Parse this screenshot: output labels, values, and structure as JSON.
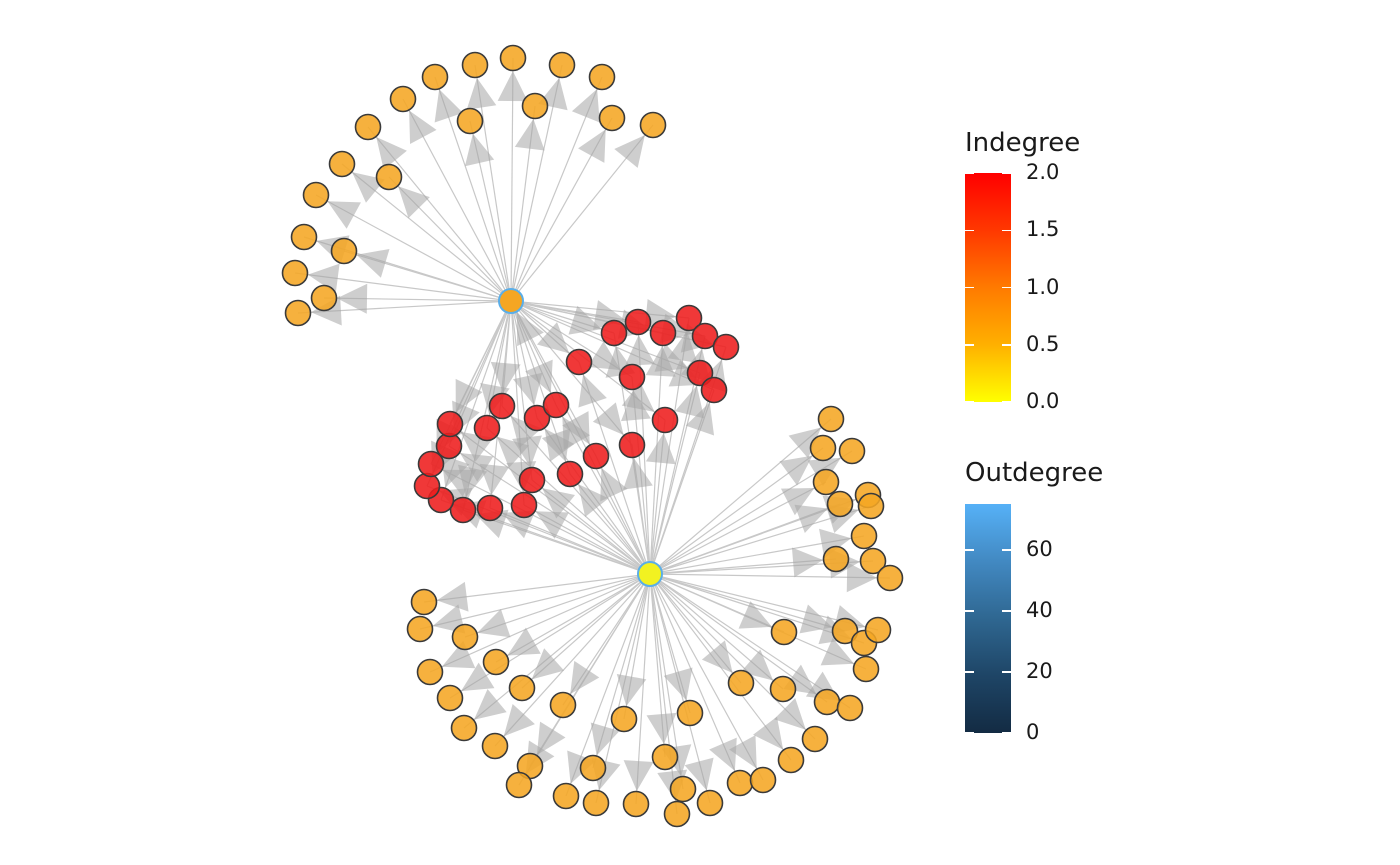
{
  "graph": {
    "hubs": [
      {
        "id": "hub-top",
        "indegree": 1,
        "outdegree": 24,
        "color": "#f5a623"
      },
      {
        "id": "hub-bottom",
        "indegree": 0,
        "outdegree": 70,
        "color": "#f2f221"
      }
    ],
    "node_colors": {
      "indegree_1": "#f5a623",
      "indegree_2": "#ee1c1c",
      "indegree_0": "#f2f221"
    },
    "edge_color": "#c8c8c8"
  },
  "legend": {
    "indegree": {
      "title": "Indegree",
      "ticks": [
        "2.0",
        "1.5",
        "1.0",
        "0.5",
        "0.0"
      ],
      "range": [
        0,
        2
      ],
      "gradient": [
        "#ffff00",
        "#ffb000",
        "#ff7a00",
        "#ff3800",
        "#ff0000"
      ]
    },
    "outdegree": {
      "title": "Outdegree",
      "ticks": [
        "60",
        "40",
        "20",
        "0"
      ],
      "tick_values": [
        60,
        40,
        20,
        0
      ],
      "range": [
        0,
        75
      ],
      "gradient": [
        "#132b43",
        "#1e4566",
        "#2f6791",
        "#4289c2",
        "#56b1f7"
      ]
    }
  }
}
